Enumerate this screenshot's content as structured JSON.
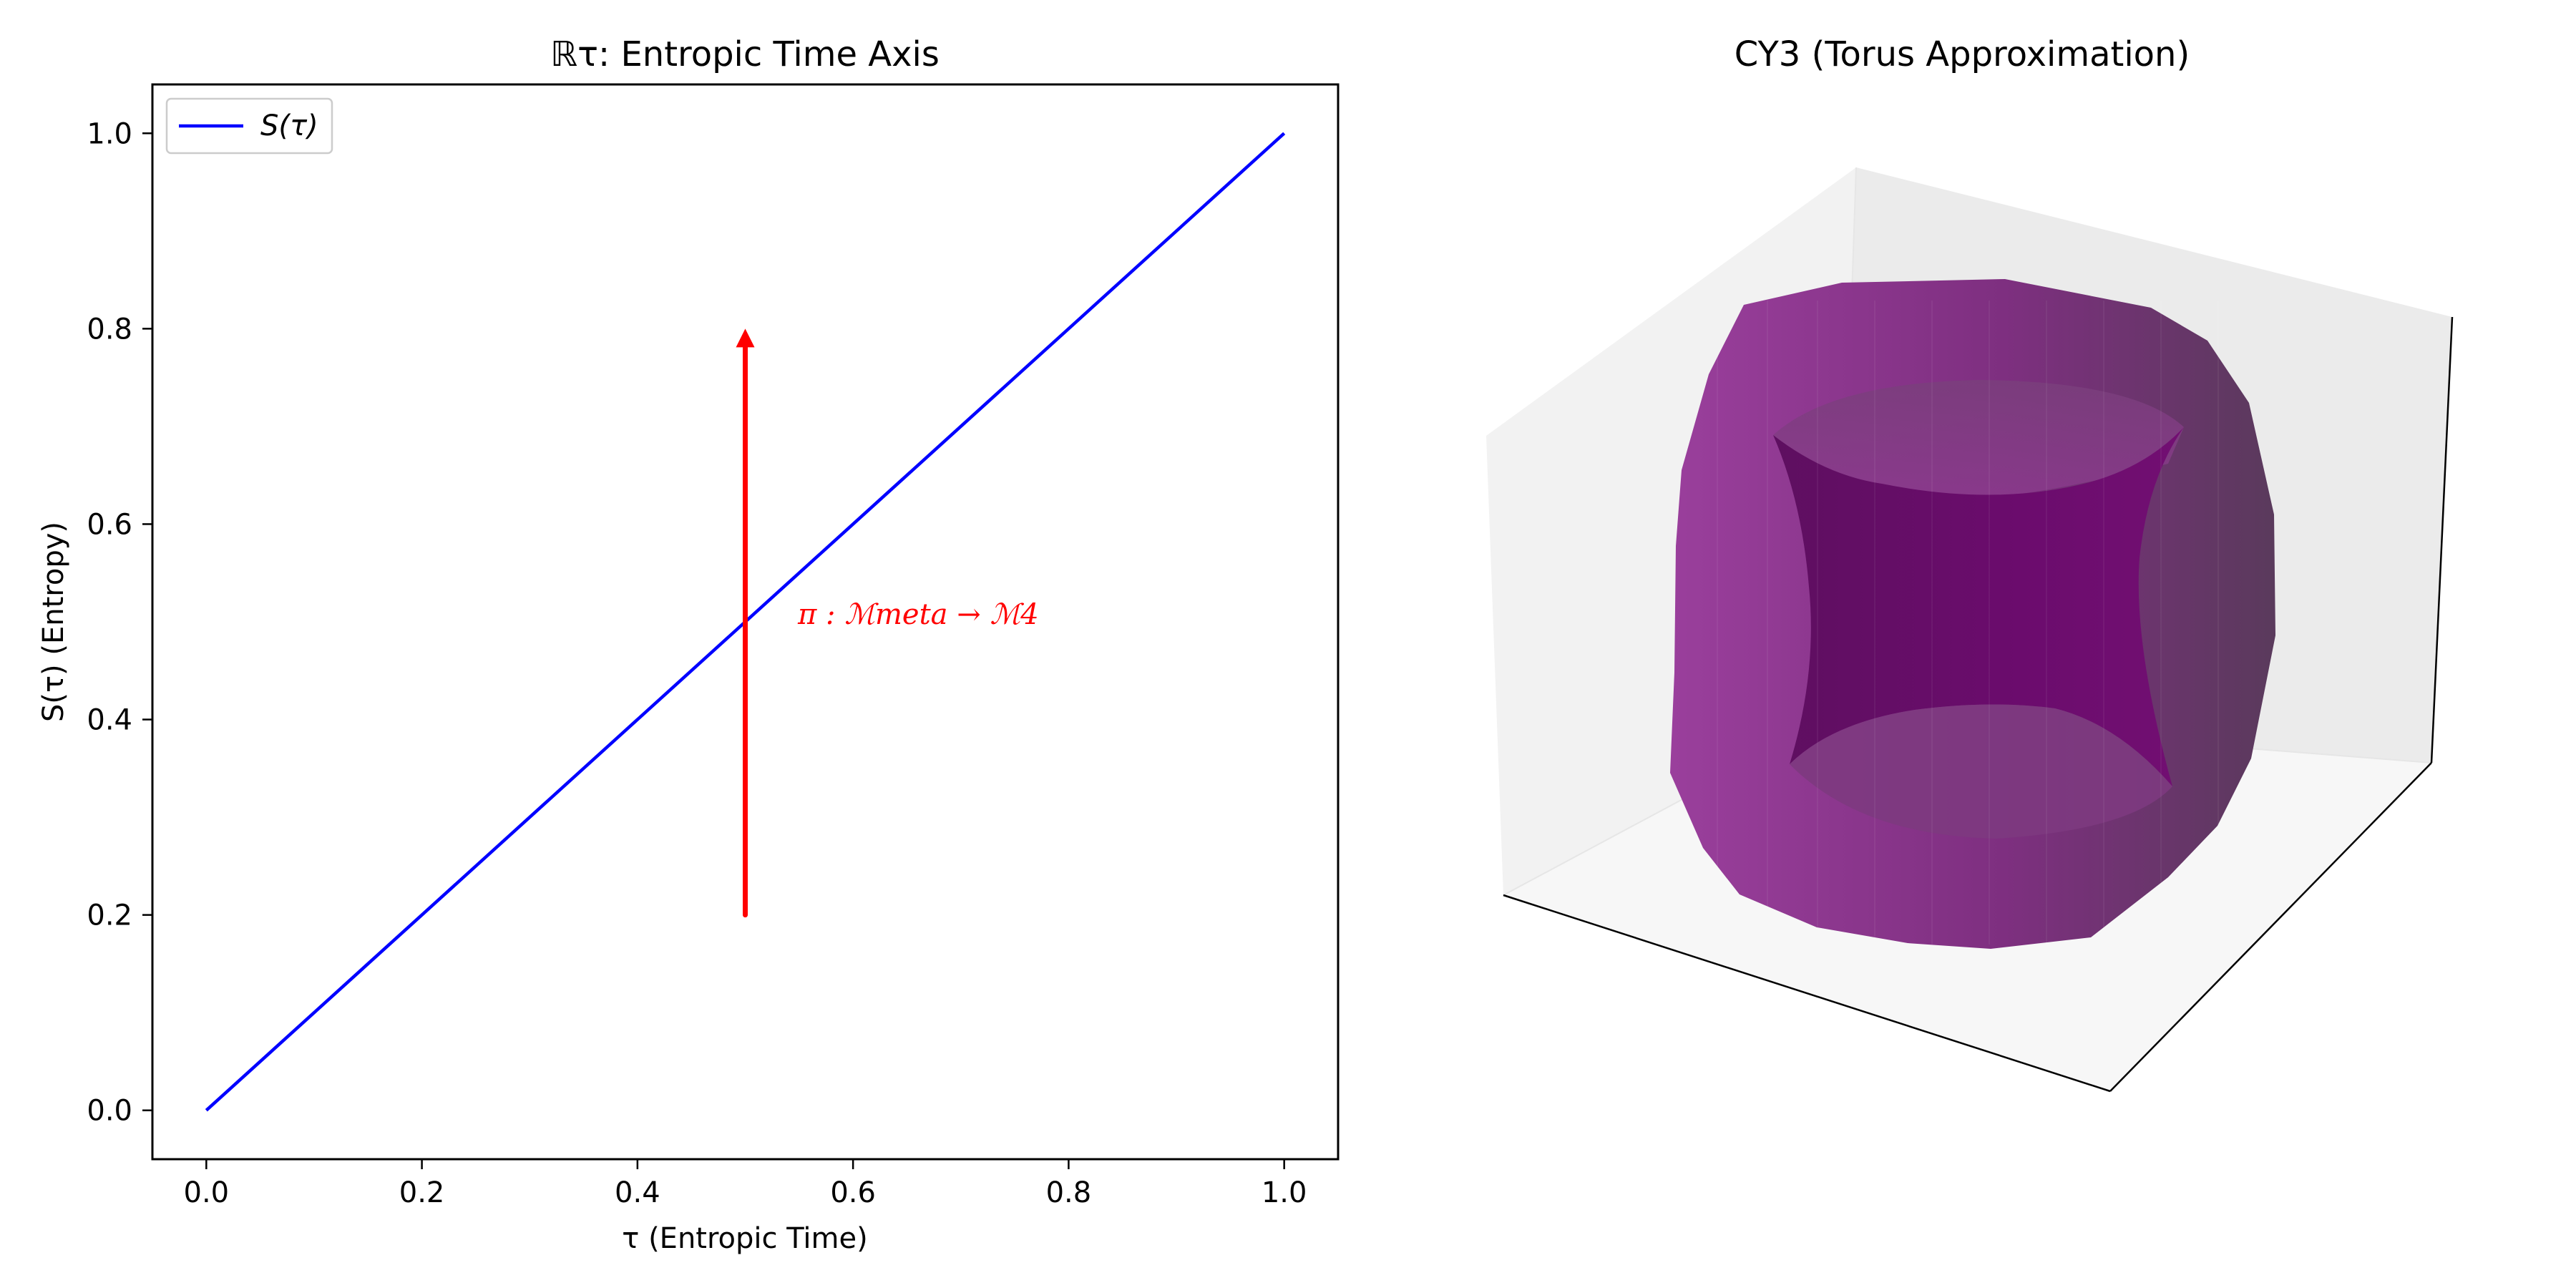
{
  "left_panel": {
    "title": "ℝτ: Entropic Time Axis",
    "xlabel": "τ (Entropic Time)",
    "ylabel": "S(τ) (Entropy)",
    "legend_label": "S(τ)",
    "annotation": "π : ℳmeta → ℳ4",
    "x_ticks": [
      "0.0",
      "0.2",
      "0.4",
      "0.6",
      "0.8",
      "1.0"
    ],
    "y_ticks": [
      "0.0",
      "0.2",
      "0.4",
      "0.6",
      "0.8",
      "1.0"
    ]
  },
  "right_panel": {
    "title": "CY3 (Torus Approximation)"
  },
  "chart_data": [
    {
      "type": "line",
      "title": "ℝτ: Entropic Time Axis",
      "xlabel": "τ (Entropic Time)",
      "ylabel": "S(τ) (Entropy)",
      "xlim": [
        -0.05,
        1.05
      ],
      "ylim": [
        -0.05,
        1.05
      ],
      "x_ticks": [
        0.0,
        0.2,
        0.4,
        0.6,
        0.8,
        1.0
      ],
      "y_ticks": [
        0.0,
        0.2,
        0.4,
        0.6,
        0.8,
        1.0
      ],
      "legend_placement": "top-left",
      "grid": false,
      "series": [
        {
          "name": "S(τ)",
          "color": "#0000ff",
          "x": [
            0.0,
            1.0
          ],
          "y": [
            0.0,
            1.0
          ]
        }
      ],
      "arrow": {
        "x": 0.5,
        "y_start": 0.2,
        "y_end": 0.8,
        "color": "#ff0000"
      },
      "annotations": [
        {
          "text": "π : ℳmeta → ℳ4",
          "x": 0.55,
          "y": 0.5,
          "color": "#ff0000"
        }
      ]
    },
    {
      "type": "surface3d",
      "title": "CY3 (Torus Approximation)",
      "surface_color": "#800080",
      "shape": "torus",
      "axes_visible": false
    }
  ]
}
